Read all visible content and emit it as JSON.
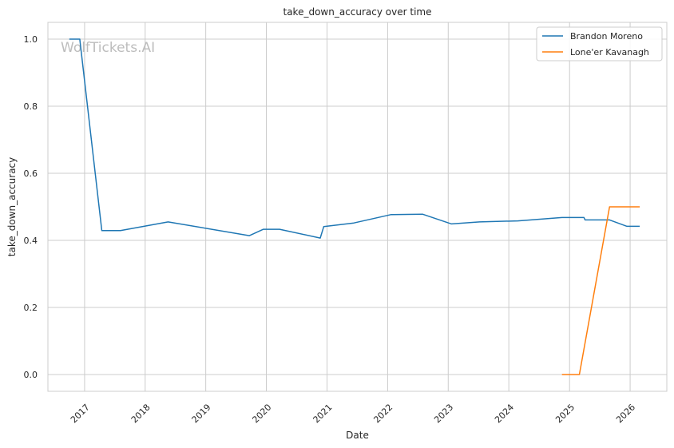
{
  "chart_data": {
    "type": "line",
    "title": "take_down_accuracy over time",
    "xlabel": "Date",
    "ylabel": "take_down_accuracy",
    "watermark": "WolfTickets.AI",
    "x_ticks": [
      "2017",
      "2018",
      "2019",
      "2020",
      "2021",
      "2022",
      "2023",
      "2024",
      "2025",
      "2026"
    ],
    "y_ticks": [
      "0.0",
      "0.2",
      "0.4",
      "0.6",
      "0.8",
      "1.0"
    ],
    "xlim": [
      "2016-05-25",
      "2026-08-10"
    ],
    "ylim": [
      -0.05,
      1.05
    ],
    "grid": true,
    "legend_position": "top-right",
    "series": [
      {
        "name": "Brandon Moreno",
        "color": "#1f77b4",
        "points": [
          {
            "x": "2016-10-01",
            "y": 1.0
          },
          {
            "x": "2016-12-03",
            "y": 1.0
          },
          {
            "x": "2017-04-15",
            "y": 0.429
          },
          {
            "x": "2017-08-05",
            "y": 0.429
          },
          {
            "x": "2018-05-19",
            "y": 0.455
          },
          {
            "x": "2019-09-21",
            "y": 0.414
          },
          {
            "x": "2019-12-14",
            "y": 0.433
          },
          {
            "x": "2020-03-21",
            "y": 0.433
          },
          {
            "x": "2020-11-21",
            "y": 0.407
          },
          {
            "x": "2020-12-12",
            "y": 0.441
          },
          {
            "x": "2021-06-12",
            "y": 0.452
          },
          {
            "x": "2022-01-22",
            "y": 0.477
          },
          {
            "x": "2022-07-30",
            "y": 0.478
          },
          {
            "x": "2023-01-21",
            "y": 0.449
          },
          {
            "x": "2023-07-08",
            "y": 0.455
          },
          {
            "x": "2024-02-24",
            "y": 0.458
          },
          {
            "x": "2024-11-16",
            "y": 0.468
          },
          {
            "x": "2025-03-29",
            "y": 0.468
          },
          {
            "x": "2025-04-05",
            "y": 0.461
          },
          {
            "x": "2025-08-30",
            "y": 0.461
          },
          {
            "x": "2025-12-13",
            "y": 0.442
          },
          {
            "x": "2026-02-28",
            "y": 0.442
          }
        ]
      },
      {
        "name": "Lone'er Kavanagh",
        "color": "#ff7f0e",
        "points": [
          {
            "x": "2024-11-16",
            "y": 0.0
          },
          {
            "x": "2025-03-01",
            "y": 0.0
          },
          {
            "x": "2025-08-30",
            "y": 0.5
          },
          {
            "x": "2026-02-28",
            "y": 0.5
          }
        ]
      }
    ]
  }
}
